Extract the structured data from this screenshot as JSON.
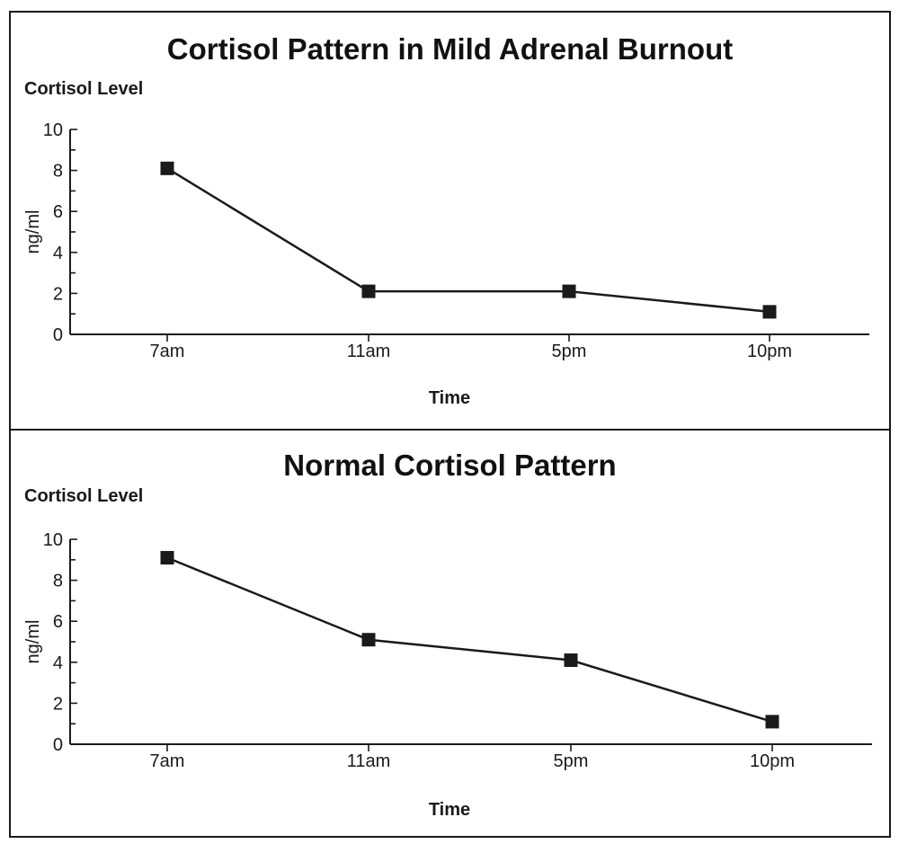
{
  "chart_data": [
    {
      "type": "line",
      "title": "Cortisol Pattern in Mild Adrenal Burnout",
      "subtitle": "Cortisol Level",
      "xlabel": "Time",
      "ylabel": "ng/ml",
      "categories": [
        "7am",
        "11am",
        "5pm",
        "10pm"
      ],
      "series": [
        {
          "values": [
            8.1,
            2.1,
            2.1,
            1.1
          ]
        }
      ],
      "ylim": [
        0,
        10
      ],
      "yticks": [
        "0",
        "2",
        "4",
        "6",
        "8",
        "10"
      ],
      "marker": "square",
      "grid": false,
      "color": "#1a1a1a"
    },
    {
      "type": "line",
      "title": "Normal Cortisol Pattern",
      "subtitle": "Cortisol Level",
      "xlabel": "Time",
      "ylabel": "ng/ml",
      "categories": [
        "7am",
        "11am",
        "5pm",
        "10pm"
      ],
      "series": [
        {
          "values": [
            9.1,
            5.1,
            4.1,
            1.1
          ]
        }
      ],
      "ylim": [
        0,
        10
      ],
      "yticks": [
        "0",
        "2",
        "4",
        "6",
        "8",
        "10"
      ],
      "marker": "square",
      "grid": false,
      "color": "#1a1a1a"
    }
  ]
}
